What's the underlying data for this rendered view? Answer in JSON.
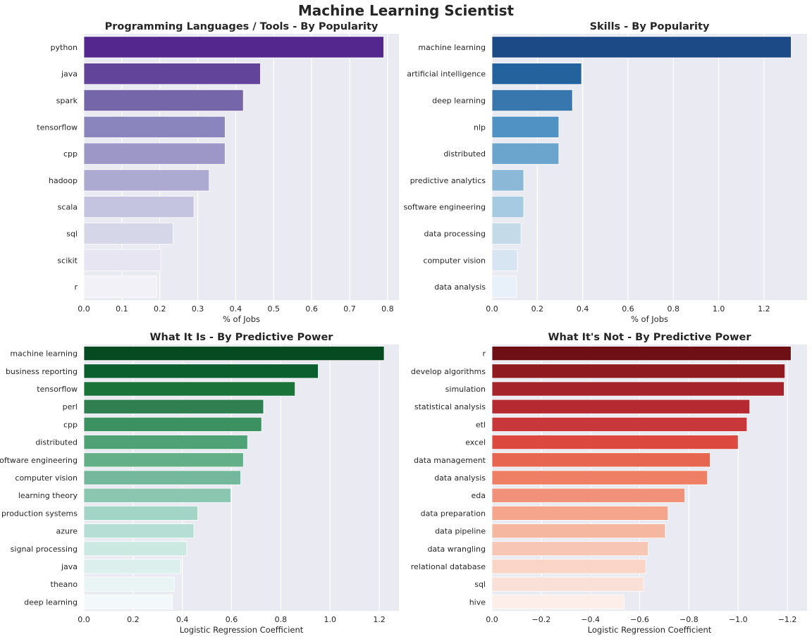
{
  "title": "Machine Learning Scientist",
  "chart_data": [
    {
      "type": "bar",
      "orientation": "horizontal",
      "title": "Programming Languages / Tools - By Popularity",
      "xlabel": "% of Jobs",
      "ylabel": "",
      "xlim": [
        0,
        0.83
      ],
      "xticks": [
        0,
        0.1,
        0.2,
        0.3,
        0.4,
        0.5,
        0.6,
        0.7,
        0.8
      ],
      "xtick_labels": [
        "0.0",
        "0.1",
        "0.2",
        "0.3",
        "0.4",
        "0.5",
        "0.6",
        "0.7",
        "0.8"
      ],
      "categories": [
        "python",
        "java",
        "spark",
        "tensorflow",
        "cpp",
        "hadoop",
        "scala",
        "sql",
        "scikit",
        "r"
      ],
      "values": [
        0.79,
        0.465,
        0.42,
        0.372,
        0.372,
        0.33,
        0.29,
        0.235,
        0.203,
        0.192
      ],
      "colors": [
        "#54278f",
        "#62449a",
        "#7566a9",
        "#8a85bd",
        "#9c97c6",
        "#adaad1",
        "#c4c3e0",
        "#d6d6e9",
        "#e6e5f1",
        "#f3f1f8"
      ],
      "grid": true
    },
    {
      "type": "bar",
      "orientation": "horizontal",
      "title": "Skills - By Popularity",
      "xlabel": "% of Jobs",
      "ylabel": "",
      "xlim": [
        0,
        1.39
      ],
      "xticks": [
        0,
        0.2,
        0.4,
        0.6,
        0.8,
        1.0,
        1.2
      ],
      "xtick_labels": [
        "0.0",
        "0.2",
        "0.4",
        "0.6",
        "0.8",
        "1.0",
        "1.2"
      ],
      "categories": [
        "machine learning",
        "artificial intelligence",
        "deep learning",
        "nlp",
        "distributed",
        "predictive analytics",
        "software engineering",
        "data processing",
        "computer vision",
        "data analysis"
      ],
      "values": [
        1.32,
        0.395,
        0.355,
        0.295,
        0.295,
        0.14,
        0.14,
        0.128,
        0.112,
        0.108
      ],
      "colors": [
        "#1b4a86",
        "#24629e",
        "#3877ae",
        "#5092c4",
        "#6ba4cc",
        "#8ab8d6",
        "#a6cae2",
        "#c4dae9",
        "#d6e5f1",
        "#e8f1f9"
      ],
      "grid": true
    },
    {
      "type": "bar",
      "orientation": "horizontal",
      "title": "What It Is - By Predictive Power",
      "xlabel": "Logistic Regression Coefficient",
      "ylabel": "",
      "xlim": [
        0,
        1.28
      ],
      "xticks": [
        0,
        0.2,
        0.4,
        0.6,
        0.8,
        1.0,
        1.2
      ],
      "xtick_labels": [
        "0.0",
        "0.2",
        "0.4",
        "0.6",
        "0.8",
        "1.0",
        "1.2"
      ],
      "categories": [
        "machine learning",
        "business reporting",
        "tensorflow",
        "perl",
        "cpp",
        "distributed",
        "software engineering",
        "computer vision",
        "learning theory",
        "production systems",
        "azure",
        "signal processing",
        "java",
        "theano",
        "deep learning"
      ],
      "values": [
        1.22,
        0.952,
        0.858,
        0.73,
        0.722,
        0.665,
        0.648,
        0.637,
        0.597,
        0.463,
        0.447,
        0.418,
        0.393,
        0.367,
        0.36
      ],
      "colors": [
        "#064a22",
        "#0b5f2e",
        "#1a743a",
        "#2f7f50",
        "#3c9160",
        "#4ea275",
        "#63af88",
        "#73b89d",
        "#8bc6b0",
        "#a2d5c6",
        "#b7ded4",
        "#cbe8e1",
        "#dcefec",
        "#e9f5f4",
        "#f3f9fb"
      ],
      "grid": true
    },
    {
      "type": "bar",
      "orientation": "horizontal",
      "title": "What It's Not - By Predictive Power",
      "xlabel": "Logistic Regression Coefficient",
      "ylabel": "",
      "xlim": [
        0,
        -1.28
      ],
      "xticks": [
        0,
        -0.2,
        -0.4,
        -0.6,
        -0.8,
        -1.0,
        -1.2
      ],
      "xtick_labels": [
        "0.0",
        "−0.2",
        "−0.4",
        "−0.6",
        "−0.8",
        "−1.0",
        "−1.2"
      ],
      "categories": [
        "r",
        "develop algorithms",
        "simulation",
        "statistical analysis",
        "etl",
        "excel",
        "data management",
        "data analysis",
        "eda",
        "data preparation",
        "data pipeline",
        "data wrangling",
        "relational database",
        "sql",
        "hive"
      ],
      "values": [
        -1.215,
        -1.19,
        -1.187,
        -1.047,
        -1.036,
        -1.0,
        -0.886,
        -0.875,
        -0.783,
        -0.715,
        -0.704,
        -0.634,
        -0.625,
        -0.616,
        -0.537
      ],
      "colors": [
        "#6e0f15",
        "#8f1b21",
        "#a5232b",
        "#b52a30",
        "#c8383a",
        "#dc4a3f",
        "#e76650",
        "#ee7f64",
        "#f1917a",
        "#f4a58b",
        "#f5b7a0",
        "#f7c6b4",
        "#f9d4c7",
        "#fbe0d7",
        "#fdeee9"
      ],
      "grid": true
    }
  ]
}
